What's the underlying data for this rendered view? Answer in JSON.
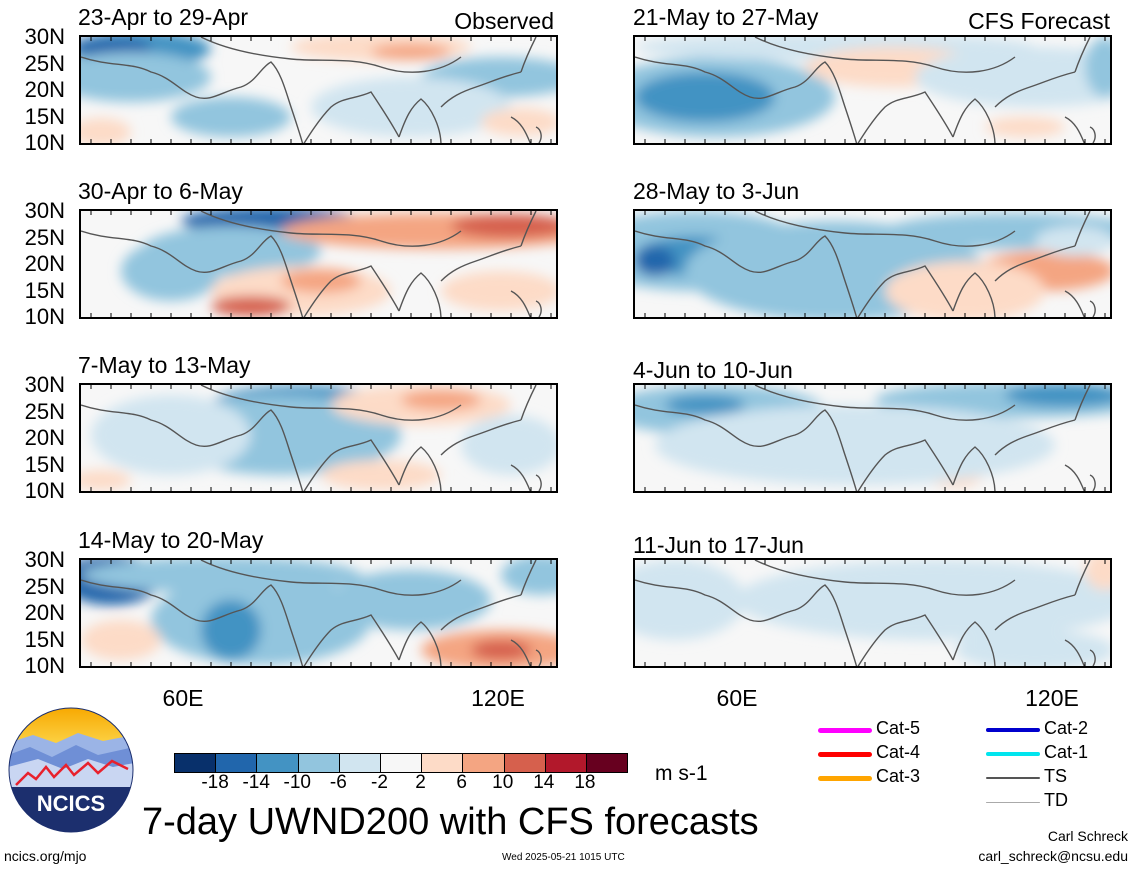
{
  "header": {
    "observed_label": "Observed",
    "forecast_label": "CFS Forecast"
  },
  "panels": [
    {
      "title": "23-Apr to 29-Apr",
      "column": "observed",
      "row": 0
    },
    {
      "title": "30-Apr to 6-May",
      "column": "observed",
      "row": 1
    },
    {
      "title": "7-May to 13-May",
      "column": "observed",
      "row": 2
    },
    {
      "title": "14-May to 20-May",
      "column": "observed",
      "row": 3
    },
    {
      "title": "21-May to 27-May",
      "column": "forecast",
      "row": 0
    },
    {
      "title": "28-May to 3-Jun",
      "column": "forecast",
      "row": 1
    },
    {
      "title": "4-Jun to 10-Jun",
      "column": "forecast",
      "row": 2
    },
    {
      "title": "11-Jun to 17-Jun",
      "column": "forecast",
      "row": 3
    }
  ],
  "axes": {
    "lat_labels": [
      "30N",
      "25N",
      "20N",
      "15N",
      "10N"
    ],
    "lon_labels": [
      "60E",
      "120E"
    ]
  },
  "colorbar": {
    "tick_labels": [
      "-18",
      "-14",
      "-10",
      "-6",
      "-2",
      "2",
      "6",
      "10",
      "14",
      "18"
    ],
    "colors": [
      "#08306b",
      "#2166ac",
      "#4393c3",
      "#92c5de",
      "#d1e5f0",
      "#f7f7f7",
      "#fddbc7",
      "#f4a582",
      "#d6604d",
      "#b2182b",
      "#67001f"
    ],
    "units": "m s-1"
  },
  "legend": [
    {
      "label": "Cat-5",
      "color": "#ff00ff",
      "width": 5
    },
    {
      "label": "Cat-4",
      "color": "#ff0000",
      "width": 5
    },
    {
      "label": "Cat-3",
      "color": "#ffa500",
      "width": 5
    },
    {
      "label": "Cat-2",
      "color": "#0000cd",
      "width": 4
    },
    {
      "label": "Cat-1",
      "color": "#00e5ee",
      "width": 4
    },
    {
      "label": "TS",
      "color": "#555555",
      "width": 2
    },
    {
      "label": "TD",
      "color": "#aaaaaa",
      "width": 1
    }
  ],
  "title": "7-day UWND200 with CFS forecasts",
  "logo": {
    "text": "NCICS"
  },
  "footer": {
    "website": "ncics.org/mjo",
    "timestamp": "Wed 2025-05-21 1015 UTC",
    "author": "Carl Schreck",
    "email": "carl_schreck@ncsu.edu"
  }
}
